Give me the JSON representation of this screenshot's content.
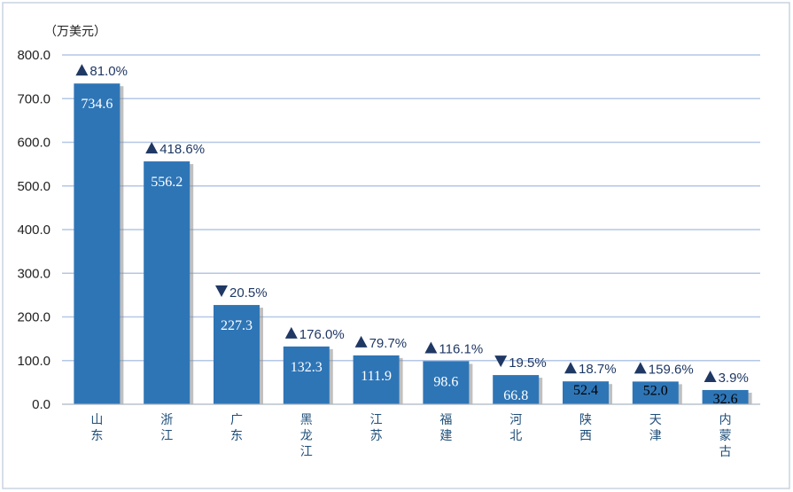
{
  "chart_data": {
    "type": "bar",
    "unit_label": "（万美元）",
    "categories": [
      [
        "山",
        "东"
      ],
      [
        "浙",
        "江"
      ],
      [
        "广",
        "东"
      ],
      [
        "黑",
        "龙",
        "江"
      ],
      [
        "江",
        "苏"
      ],
      [
        "福",
        "建"
      ],
      [
        "河",
        "北"
      ],
      [
        "陕",
        "西"
      ],
      [
        "天",
        "津"
      ],
      [
        "内",
        "蒙",
        "古"
      ]
    ],
    "values": [
      734.6,
      556.2,
      227.3,
      132.3,
      111.9,
      98.6,
      66.8,
      52.4,
      52.0,
      32.6
    ],
    "value_labels": [
      "734.6",
      "556.2",
      "227.3",
      "132.3",
      "111.9",
      "98.6",
      "66.8",
      "52.4",
      "52.0",
      "32.6"
    ],
    "changes": [
      {
        "direction": "up",
        "text": "81.0%"
      },
      {
        "direction": "up",
        "text": "418.6%"
      },
      {
        "direction": "down",
        "text": "20.5%"
      },
      {
        "direction": "up",
        "text": "176.0%"
      },
      {
        "direction": "up",
        "text": "79.7%"
      },
      {
        "direction": "up",
        "text": "116.1%"
      },
      {
        "direction": "down",
        "text": "19.5%"
      },
      {
        "direction": "up",
        "text": "18.7%"
      },
      {
        "direction": "up",
        "text": "159.6%"
      },
      {
        "direction": "up",
        "text": "3.9%"
      }
    ],
    "ylim": [
      0,
      800
    ],
    "yticks": [
      "0.0",
      "100.0",
      "200.0",
      "300.0",
      "400.0",
      "500.0",
      "600.0",
      "700.0",
      "800.0"
    ],
    "grid": true,
    "colors": {
      "bar": "#2e75b6",
      "bar_shadow": "#8c8c8c",
      "grid": "#b4c7e7",
      "marker": "#1f3864",
      "border": "#c9d3e0"
    }
  }
}
